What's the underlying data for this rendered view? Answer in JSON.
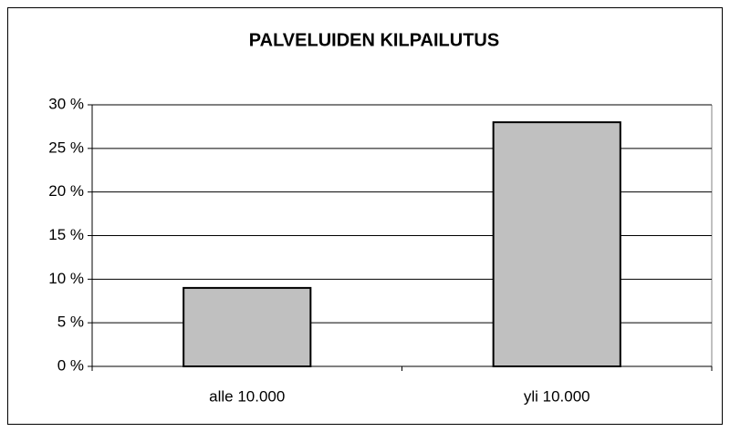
{
  "chart_data": {
    "type": "bar",
    "title": "PALVELUIDEN KILPAILUTUS",
    "categories": [
      "alle 10.000",
      "yli 10.000"
    ],
    "values": [
      9,
      28
    ],
    "color": "#c0c0c0",
    "ylim": [
      0,
      30
    ],
    "yticks": [
      {
        "value": 0,
        "label": "0 %"
      },
      {
        "value": 5,
        "label": "5 %"
      },
      {
        "value": 10,
        "label": "10 %"
      },
      {
        "value": 15,
        "label": "15 %"
      },
      {
        "value": 20,
        "label": "20 %"
      },
      {
        "value": 25,
        "label": "25 %"
      },
      {
        "value": 30,
        "label": "30 %"
      }
    ],
    "grid": true
  }
}
